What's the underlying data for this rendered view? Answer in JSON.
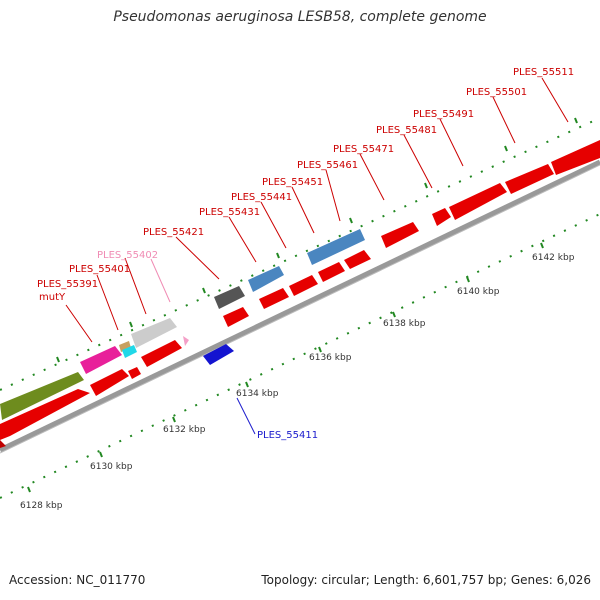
{
  "title": "Pseudomonas aeruginosa LESB58, complete genome",
  "footer": {
    "accession": "Accession: NC_011770",
    "summary": "Topology: circular; Length: 6,601,757 bp; Genes: 6,026"
  },
  "colors": {
    "red": "#e60000",
    "olive": "#6e8c1e",
    "magenta": "#e8209a",
    "tan": "#c8a060",
    "cyan": "#20d8e8",
    "lightgray": "#cccccc",
    "pink": "#f4a0c8",
    "darkgray": "#555555",
    "steelblue": "#4a86c0",
    "blue": "#1414d0",
    "label_red": "#cc0000",
    "label_pink": "#f08cb4",
    "label_blue": "#1a1acc",
    "tick_green": "#228822"
  },
  "ticks": [
    "6128 kbp",
    "6130 kbp",
    "6132 kbp",
    "6134 kbp",
    "6136 kbp",
    "6138 kbp",
    "6140 kbp",
    "6142 kbp"
  ],
  "gene_labels": [
    {
      "name": "ply",
      "text": "PLES_55391"
    },
    {
      "name": "mutY",
      "text": "mutY"
    },
    {
      "name": "p55401",
      "text": "PLES_55401"
    },
    {
      "name": "p55402",
      "text": "PLES_55402"
    },
    {
      "name": "p55411",
      "text": "PLES_55411"
    },
    {
      "name": "p55421",
      "text": "PLES_55421"
    },
    {
      "name": "p55431",
      "text": "PLES_55431"
    },
    {
      "name": "p55441",
      "text": "PLES_55441"
    },
    {
      "name": "p55451",
      "text": "PLES_55451"
    },
    {
      "name": "p55461",
      "text": "PLES_55461"
    },
    {
      "name": "p55471",
      "text": "PLES_55471"
    },
    {
      "name": "p55481",
      "text": "PLES_55481"
    },
    {
      "name": "p55491",
      "text": "PLES_55491"
    },
    {
      "name": "p55501",
      "text": "PLES_55501"
    },
    {
      "name": "p55511",
      "text": "PLES_55511"
    }
  ]
}
